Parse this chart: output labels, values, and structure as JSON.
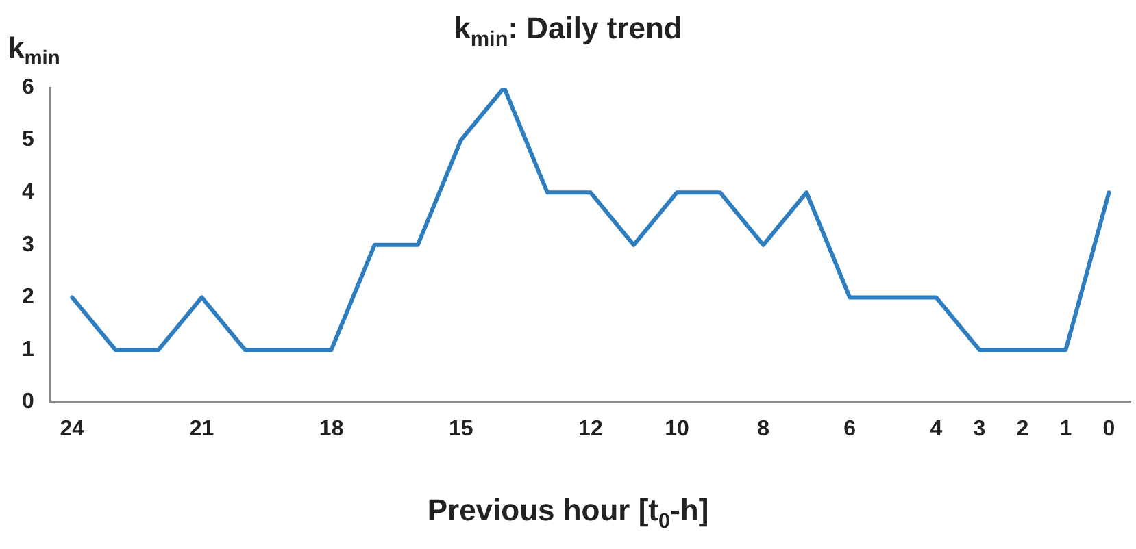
{
  "chart_data": {
    "type": "line",
    "title": "k$_{min}$: Daily trend",
    "ylabel": "k$_{min}$",
    "xlabel": "Previous hour [t$_{0}$-h]",
    "categories": [
      "24",
      null,
      null,
      "21",
      null,
      null,
      "18",
      null,
      null,
      "15",
      null,
      null,
      "12",
      null,
      "10",
      null,
      "8",
      null,
      "6",
      null,
      "4",
      "3",
      "2",
      "1",
      "0"
    ],
    "series": [
      {
        "color": "#2e7ebf",
        "values": [
          2,
          1,
          1,
          2,
          1,
          1,
          1,
          3,
          3,
          5,
          6,
          4,
          4,
          3,
          4,
          4,
          3,
          4,
          2,
          2,
          2,
          1,
          1,
          1,
          4
        ]
      }
    ],
    "ylim": [
      0,
      6
    ],
    "yticks": [
      0,
      1,
      2,
      3,
      4,
      5,
      6
    ],
    "grid": false,
    "legend": false,
    "marker": "none",
    "line_style": "solid"
  }
}
